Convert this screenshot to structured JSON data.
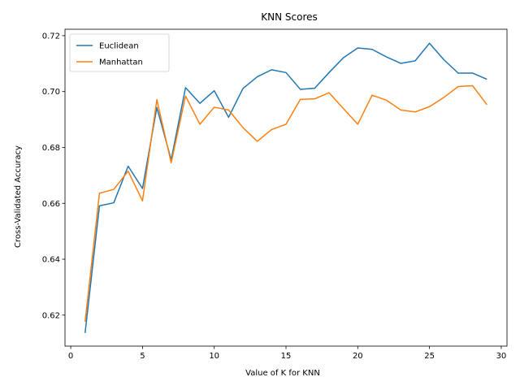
{
  "chart_data": {
    "type": "line",
    "title": "KNN Scores",
    "xlabel": "Value of K for KNN",
    "ylabel": "Cross-Validated Accuracy",
    "xlim": [
      -0.4,
      30.4
    ],
    "ylim": [
      0.6089,
      0.7223
    ],
    "xticks": [
      0,
      5,
      10,
      15,
      20,
      25,
      30
    ],
    "xtick_labels": [
      "0",
      "5",
      "10",
      "15",
      "20",
      "25",
      "30"
    ],
    "yticks": [
      0.62,
      0.64,
      0.66,
      0.68,
      0.7,
      0.72
    ],
    "ytick_labels": [
      "0.62",
      "0.64",
      "0.66",
      "0.68",
      "0.70",
      "0.72"
    ],
    "grid": false,
    "legend_position": "top-left",
    "x": [
      1,
      2,
      3,
      4,
      5,
      6,
      7,
      8,
      9,
      10,
      11,
      12,
      13,
      14,
      15,
      16,
      17,
      18,
      19,
      20,
      21,
      22,
      23,
      24,
      25,
      26,
      27,
      28,
      29
    ],
    "series": [
      {
        "name": "Euclidean",
        "color": "#1f77b4",
        "values": [
          0.6136,
          0.6591,
          0.6602,
          0.6733,
          0.6653,
          0.6943,
          0.6756,
          0.7014,
          0.6958,
          0.7003,
          0.6908,
          0.7011,
          0.7053,
          0.7078,
          0.7068,
          0.7008,
          0.7012,
          0.7068,
          0.7121,
          0.7156,
          0.7151,
          0.7124,
          0.7101,
          0.711,
          0.7173,
          0.7114,
          0.7066,
          0.7066,
          0.7044
        ]
      },
      {
        "name": "Manhattan",
        "color": "#ff7f0e",
        "values": [
          0.6176,
          0.6636,
          0.665,
          0.6715,
          0.6609,
          0.6971,
          0.6745,
          0.6984,
          0.6883,
          0.6944,
          0.6934,
          0.6871,
          0.6822,
          0.6864,
          0.6883,
          0.6972,
          0.6974,
          0.6996,
          0.6939,
          0.6883,
          0.6987,
          0.6969,
          0.6934,
          0.6927,
          0.6946,
          0.6979,
          0.7018,
          0.7021,
          0.6953
        ]
      }
    ]
  }
}
